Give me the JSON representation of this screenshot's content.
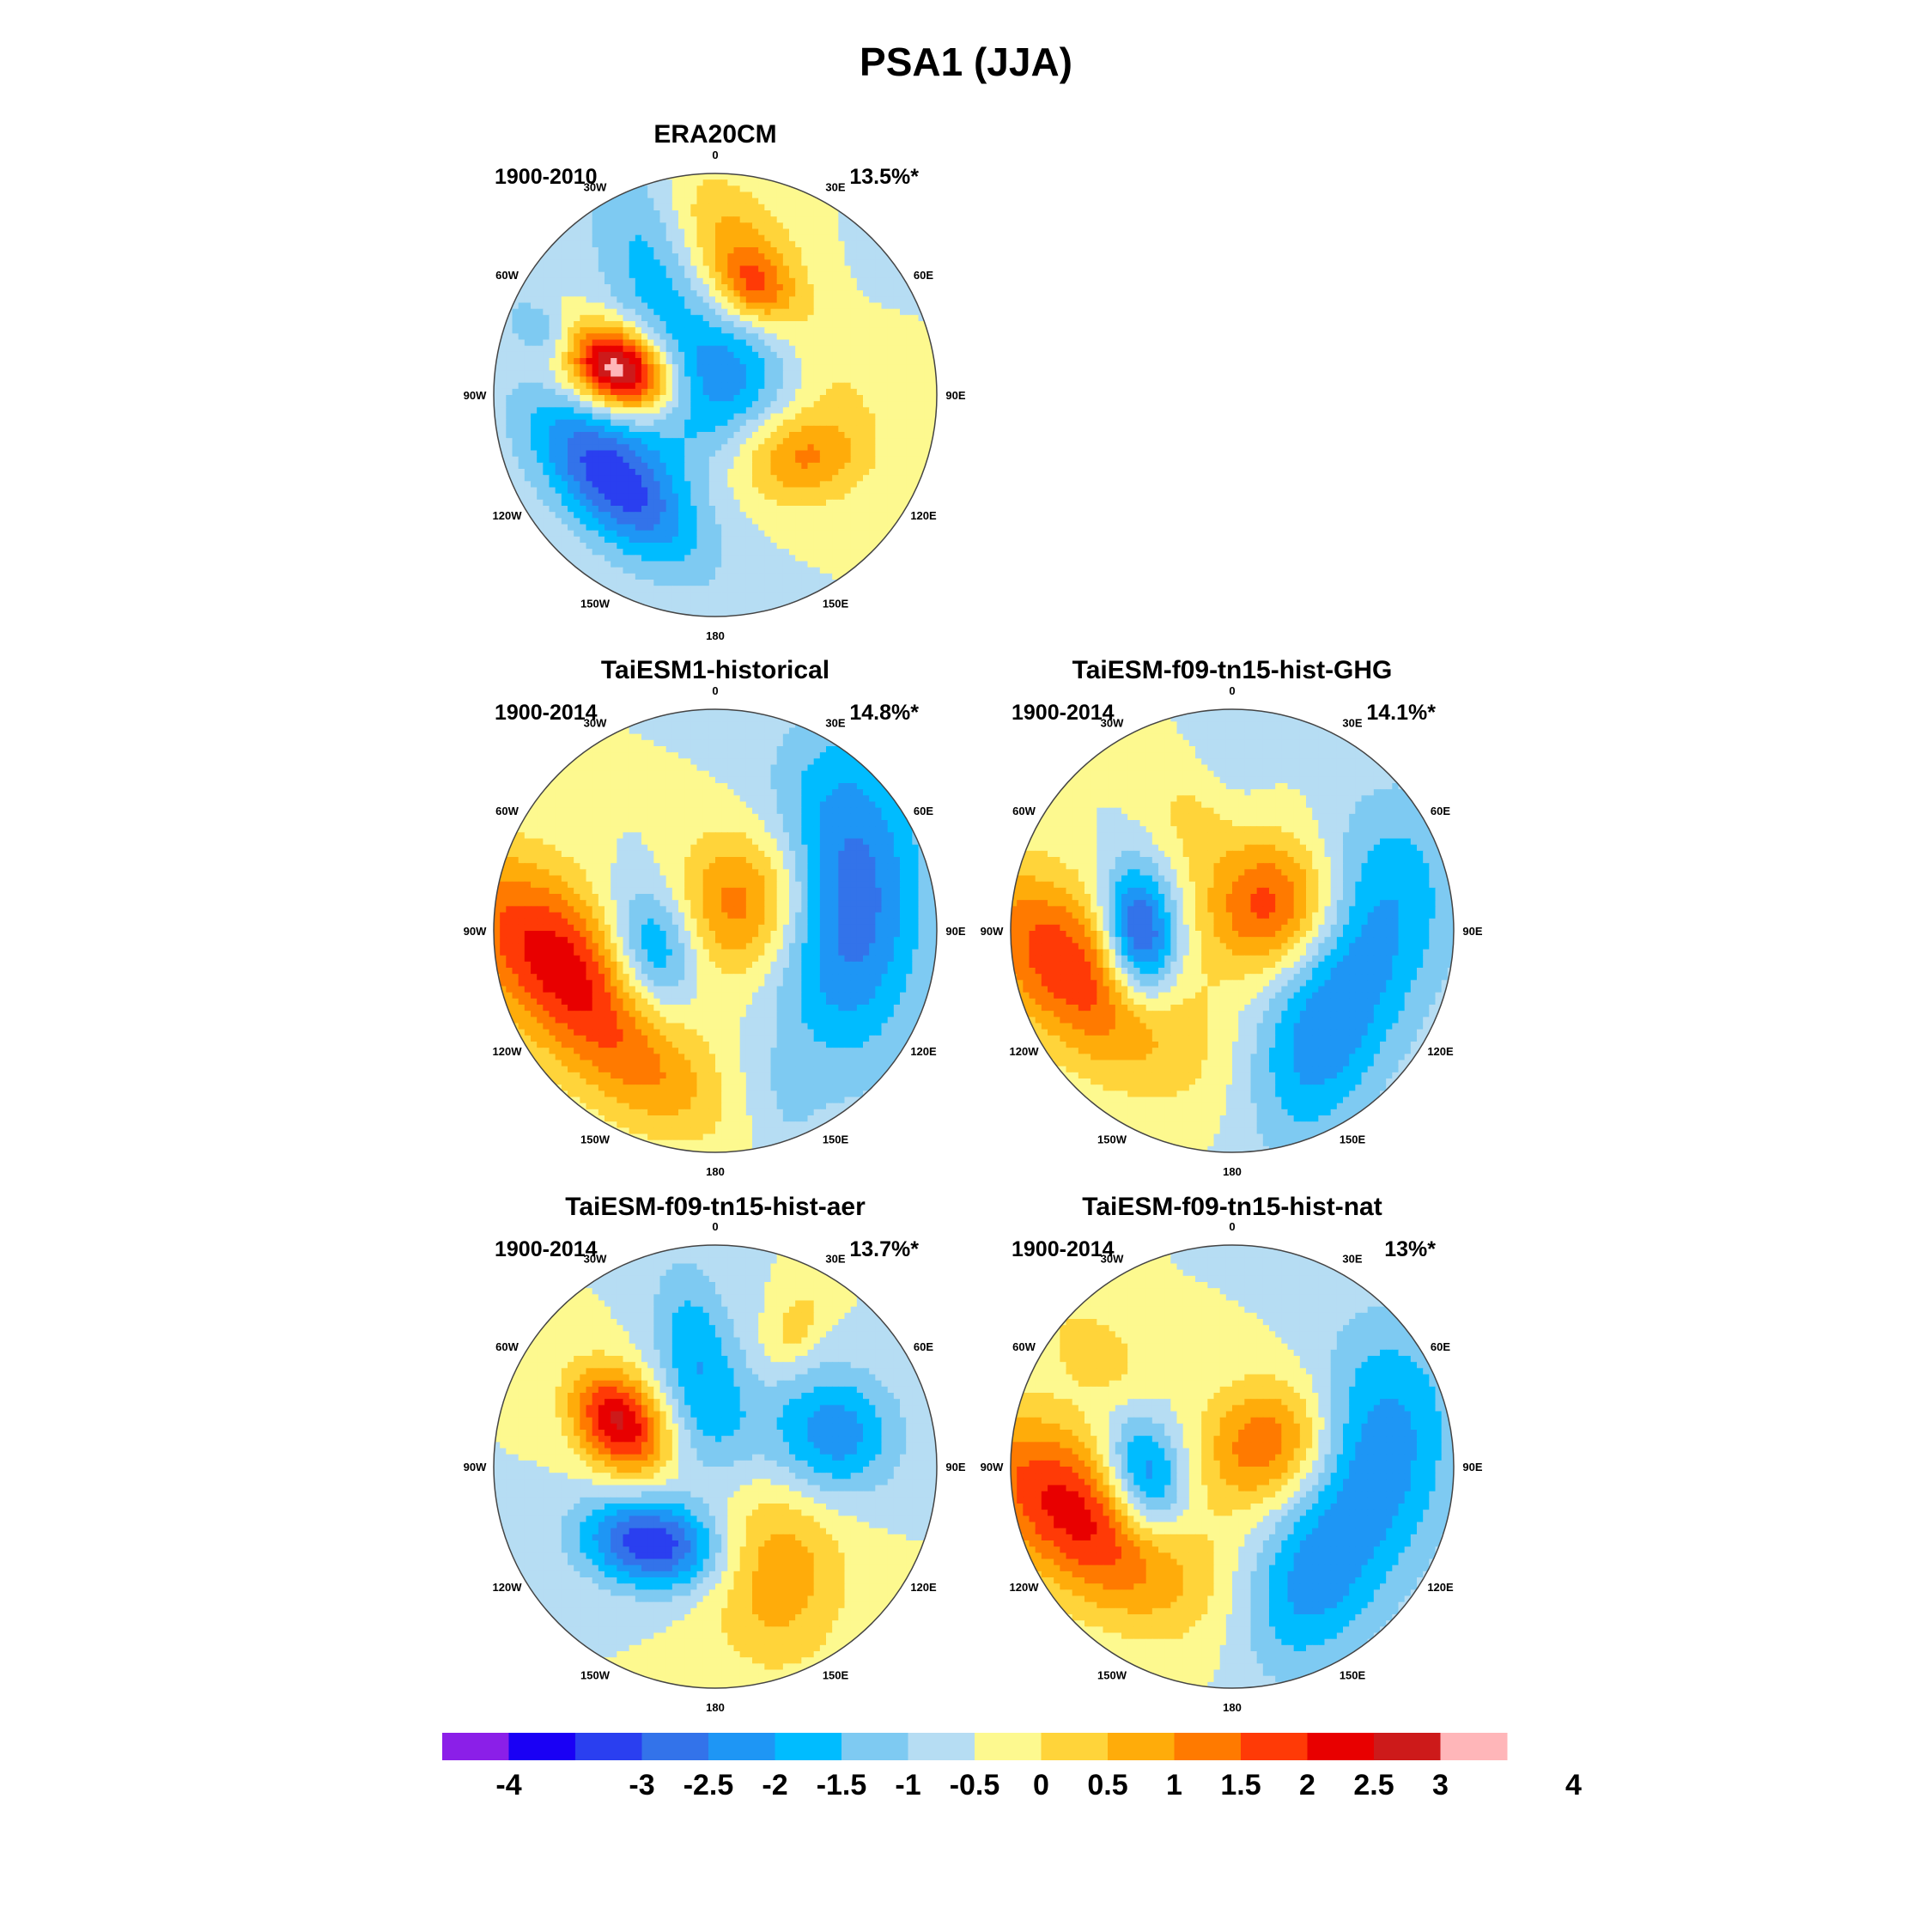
{
  "figure": {
    "title": "PSA1 (JJA)"
  },
  "panels": [
    {
      "id": "era20cm",
      "title": "ERA20CM",
      "period": "1900-2010",
      "variance": "13.5%*",
      "blobs": [
        [
          -125,
          0.58,
          0.2,
          0.2,
          0.3,
          -0.1
        ],
        [
          20,
          0.55,
          0.42,
          0.17,
          60,
          1.7
        ],
        [
          20,
          0.52,
          0.11,
          0.09,
          60,
          1.1
        ],
        [
          -75,
          0.45,
          0.18,
          0.12,
          -10,
          4.2
        ],
        [
          -130,
          0.6,
          0.34,
          0.16,
          95,
          -2.7
        ],
        [
          -25,
          0.65,
          0.42,
          0.18,
          -10,
          -1.3
        ],
        [
          40,
          0.15,
          0.32,
          0.2,
          -10,
          -1.7
        ],
        [
          125,
          0.48,
          0.2,
          0.15,
          40,
          1.6
        ],
        [
          -70,
          0.82,
          0.15,
          0.08,
          -20,
          -1.0
        ]
      ]
    },
    {
      "id": "hist",
      "title": "TaiESM1-historical",
      "period": "1900-2014",
      "variance": "14.8%*",
      "blobs": [
        [
          -105,
          0.7,
          0.22,
          0.45,
          30,
          2.9
        ],
        [
          -110,
          0.3,
          0.15,
          0.22,
          -10,
          -2.3
        ],
        [
          50,
          0.2,
          0.26,
          0.23,
          0,
          2.1
        ],
        [
          75,
          0.6,
          0.25,
          0.5,
          -15,
          -2.6
        ],
        [
          -160,
          0.75,
          0.25,
          0.15,
          80,
          0.6
        ],
        [
          160,
          0.85,
          0.2,
          0.12,
          0,
          -0.4
        ]
      ]
    },
    {
      "id": "ghg",
      "title": "TaiESM-f09-tn15-hist-GHG",
      "period": "1900-2014",
      "variance": "14.1%*",
      "blobs": [
        [
          -95,
          0.42,
          0.12,
          0.22,
          0,
          -3.3
        ],
        [
          -105,
          0.72,
          0.22,
          0.42,
          35,
          2.5
        ],
        [
          60,
          0.22,
          0.22,
          0.22,
          0,
          2.4
        ],
        [
          85,
          0.65,
          0.25,
          0.4,
          -20,
          -1.6
        ],
        [
          145,
          0.65,
          0.2,
          0.35,
          40,
          -1.5
        ],
        [
          -20,
          0.55,
          0.18,
          0.15,
          0,
          0.6
        ],
        [
          0,
          0.85,
          0.25,
          0.12,
          0,
          -0.4
        ]
      ]
    },
    {
      "id": "aer",
      "title": "TaiESM-f09-tn15-hist-aer",
      "period": "1900-2014",
      "variance": "13.7%*",
      "blobs": [
        [
          -65,
          0.48,
          0.18,
          0.13,
          -30,
          3.1
        ],
        [
          -140,
          0.45,
          0.14,
          0.22,
          30,
          -3.0
        ],
        [
          75,
          0.55,
          0.2,
          0.2,
          0,
          -1.9
        ],
        [
          150,
          0.55,
          0.3,
          0.22,
          -30,
          1.4
        ],
        [
          -10,
          0.5,
          0.3,
          0.13,
          0,
          -1.4
        ],
        [
          30,
          0.72,
          0.15,
          0.08,
          0,
          0.8
        ],
        [
          20,
          0.2,
          0.22,
          0.16,
          0,
          -0.5
        ]
      ]
    },
    {
      "id": "nat",
      "title": "TaiESM-f09-tn15-hist-nat",
      "period": "1900-2014",
      "variance": "13%*",
      "blobs": [
        [
          -100,
          0.4,
          0.13,
          0.2,
          0,
          -2.5
        ],
        [
          -108,
          0.72,
          0.22,
          0.42,
          35,
          2.8
        ],
        [
          60,
          0.2,
          0.22,
          0.2,
          0,
          2.1
        ],
        [
          85,
          0.65,
          0.25,
          0.42,
          -15,
          -1.9
        ],
        [
          -50,
          0.8,
          0.2,
          0.12,
          0,
          0.8
        ],
        [
          150,
          0.65,
          0.2,
          0.3,
          40,
          -1.4
        ]
      ]
    }
  ],
  "map_labels": {
    "lon_labels": [
      "0",
      "30E",
      "60E",
      "90E",
      "120E",
      "150E",
      "180",
      "150W",
      "120W",
      "90W",
      "60W",
      "30W"
    ]
  },
  "colorbar": {
    "bounds": [
      -4,
      -3.5,
      -3,
      -2.5,
      -2,
      -1.5,
      -1,
      -0.5,
      0,
      0.5,
      1,
      1.5,
      2,
      2.5,
      3,
      3.5,
      4
    ],
    "colors": [
      "#8b1fe8",
      "#1a00f5",
      "#2a3ff0",
      "#3373ea",
      "#1e96f5",
      "#00bcff",
      "#7ecaf2",
      "#b6ddf3",
      "#fdf98f",
      "#ffd43a",
      "#ffac0a",
      "#ff7a00",
      "#ff3a06",
      "#e80000",
      "#cd1a1a",
      "#ffb6b9"
    ],
    "tick_labels": [
      "-4",
      "-3",
      "-2.5",
      "-2",
      "-1.5",
      "-1",
      "-0.5",
      "0",
      "0.5",
      "1",
      "1.5",
      "2",
      "2.5",
      "3",
      "4"
    ]
  }
}
